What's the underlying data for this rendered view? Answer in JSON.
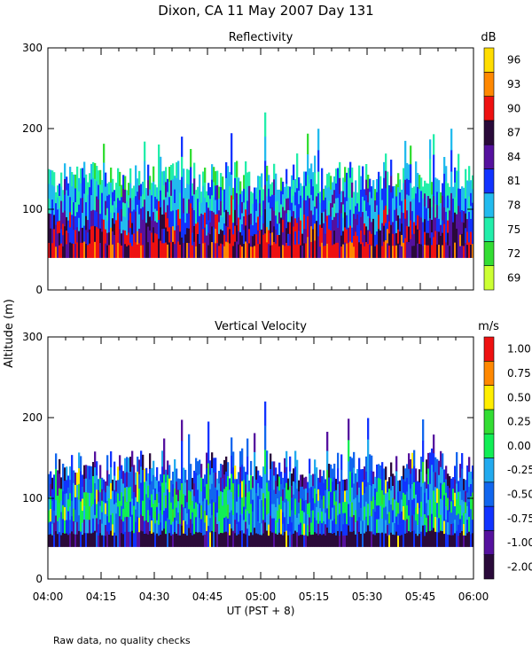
{
  "title": "Dixon, CA 11 May 2007  Day 131",
  "ylabel": "Altitude (m)",
  "xlabel": "UT  (PST + 8)",
  "footnote": "Raw data, no quality checks",
  "chart_data": [
    {
      "type": "heatmap",
      "title": "Reflectivity",
      "ylabel": "Altitude (m)",
      "ylim": [
        0,
        300
      ],
      "yticks": [
        0,
        100,
        200,
        300
      ],
      "xlim": [
        "04:00",
        "06:00"
      ],
      "xticks": [
        "04:00",
        "04:15",
        "04:30",
        "04:45",
        "05:00",
        "05:15",
        "05:30",
        "05:45",
        "06:00"
      ],
      "colorbar": {
        "unit": "dB",
        "levels": [
          69,
          72,
          75,
          78,
          81,
          84,
          87,
          90,
          93,
          96
        ],
        "colors": [
          "#ccff33",
          "#33dd33",
          "#22eeaa",
          "#22bbee",
          "#1133ff",
          "#55119e",
          "#2a0a3a",
          "#ee1111",
          "#ff8800",
          "#ffdd00"
        ]
      },
      "data_extent": {
        "altitude_min": 40,
        "altitude_typical_top": [
          120,
          160
        ],
        "altitude_max": 220
      }
    },
    {
      "type": "heatmap",
      "title": "Vertical Velocity",
      "ylabel": "Altitude (m)",
      "ylim": [
        0,
        300
      ],
      "yticks": [
        0,
        100,
        200,
        300
      ],
      "xlim": [
        "04:00",
        "06:00"
      ],
      "xticks": [
        "04:00",
        "04:15",
        "04:30",
        "04:45",
        "05:00",
        "05:15",
        "05:30",
        "05:45",
        "06:00"
      ],
      "colorbar": {
        "unit": "m/s",
        "labels": [
          "-2.00",
          "-1.00",
          "-0.75",
          "-0.50",
          "-0.25",
          "0.00",
          "0.25",
          "0.50",
          "0.75",
          "1.00"
        ],
        "colors": [
          "#2a0a3a",
          "#55119e",
          "#1133ff",
          "#1166ee",
          "#22aaee",
          "#11ee55",
          "#33dd33",
          "#ffee00",
          "#ff8800",
          "#ee1111"
        ]
      },
      "data_extent": {
        "altitude_min": 40,
        "altitude_typical_top": [
          120,
          160
        ],
        "altitude_max": 220
      }
    }
  ]
}
